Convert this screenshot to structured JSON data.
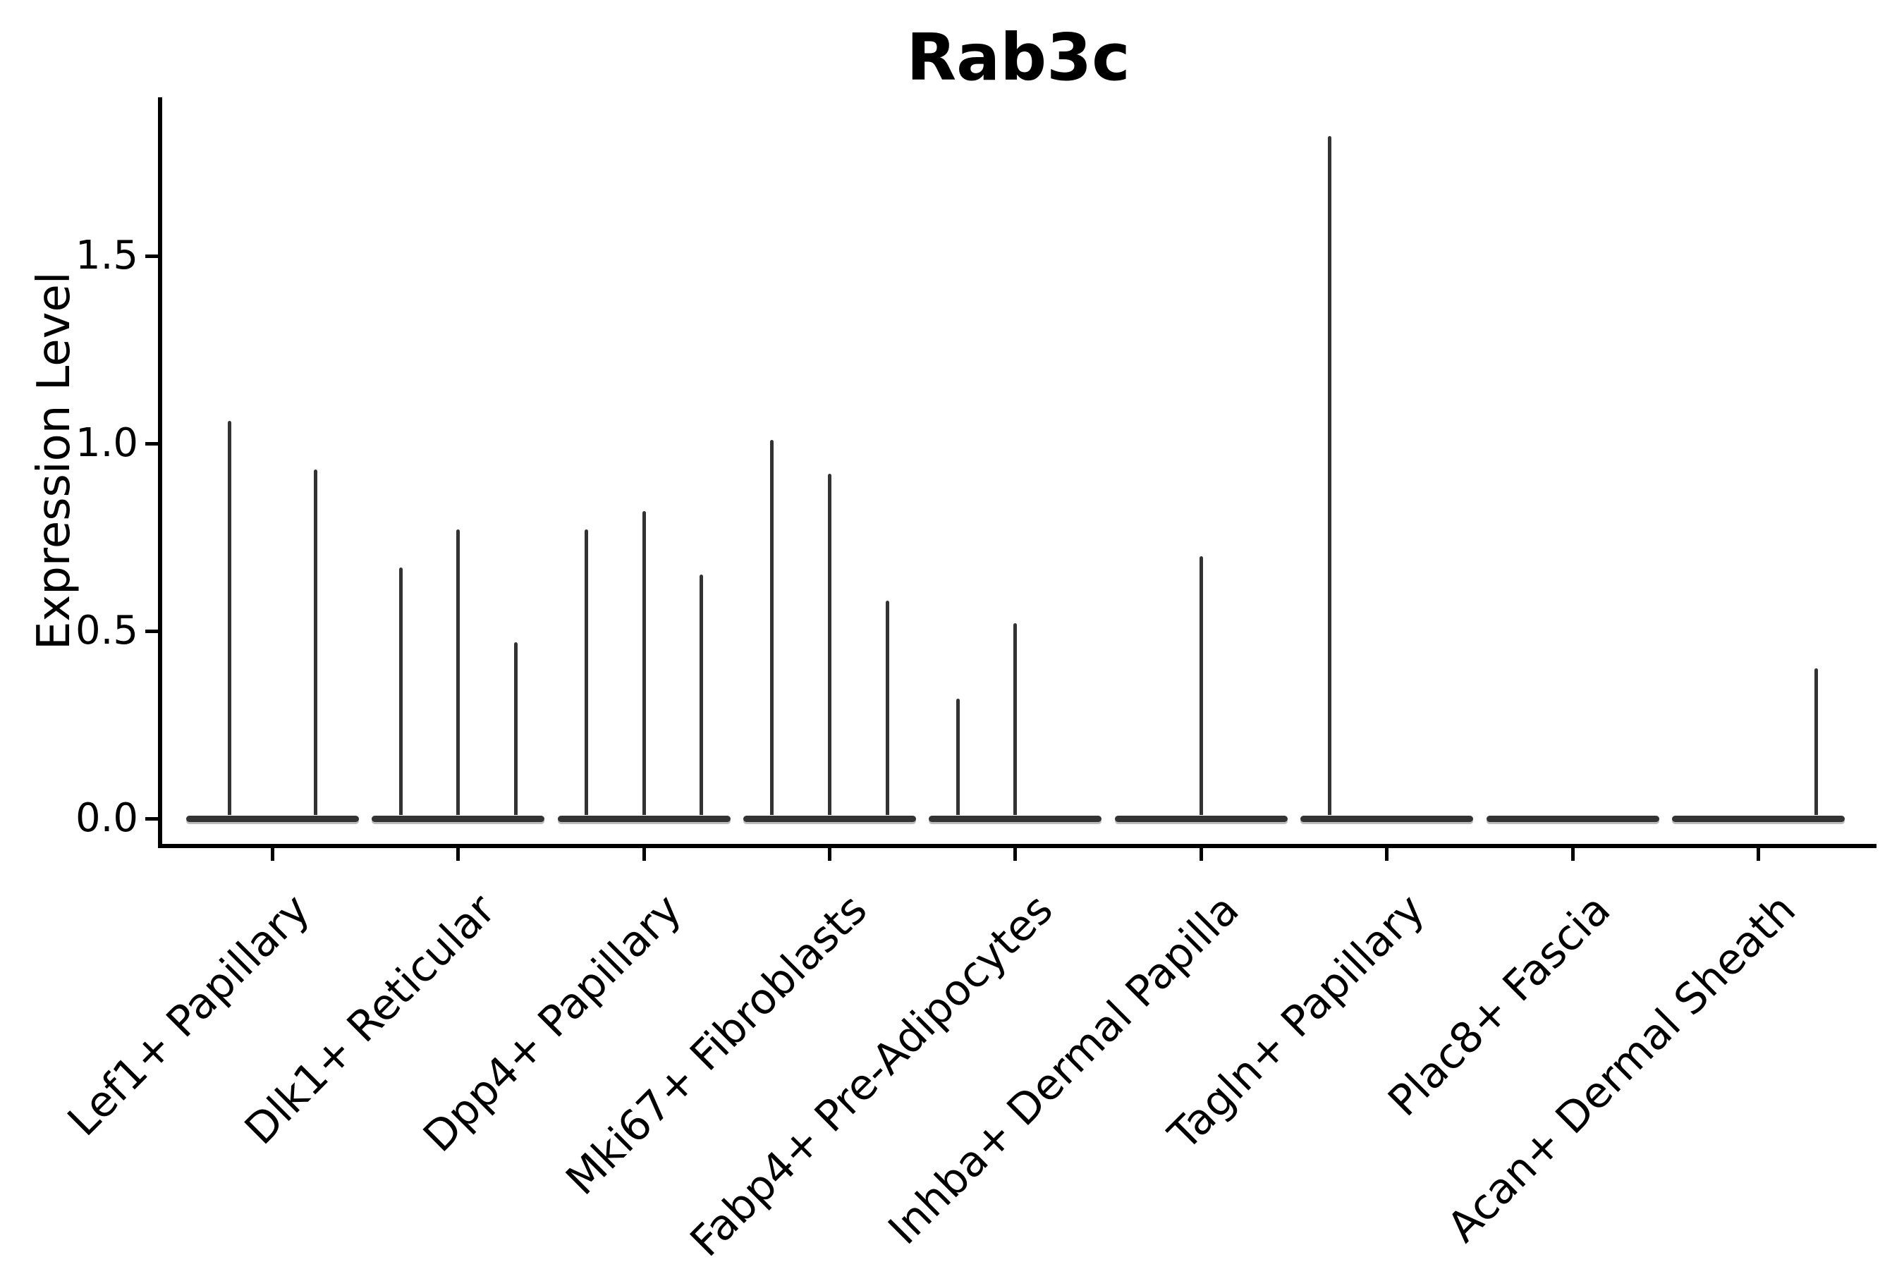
{
  "chart_data": {
    "type": "violin",
    "title": "Rab3c",
    "ylabel": "Expression Level",
    "xlabel": "",
    "yticks_labels": [
      "0.0",
      "0.5",
      "1.0",
      "1.5"
    ],
    "yticks_values": [
      0.0,
      0.5,
      1.0,
      1.5
    ],
    "ylim": [
      -0.07,
      1.92
    ],
    "grid": false,
    "legend": "none",
    "style": "thin spike violins with flat density bar at 0, monochrome",
    "categories": [
      "Lef1+ Papillary",
      "Dlk1+ Reticular",
      "Dpp4+ Papillary",
      "Mki67+ Fibroblasts",
      "Fabp4+ Pre-Adipocytes",
      "Inhba+ Dermal Papilla",
      "Tagln+ Papillary",
      "Plac8+ Fascia",
      "Acan+ Dermal Sheath"
    ],
    "groups": [
      {
        "label": "Lef1+ Papillary",
        "violin_maxima": [
          1.06,
          0.93
        ]
      },
      {
        "label": "Dlk1+ Reticular",
        "violin_maxima": [
          0.67,
          0.77,
          0.47
        ]
      },
      {
        "label": "Dpp4+ Papillary",
        "violin_maxima": [
          0.77,
          0.82,
          0.65
        ]
      },
      {
        "label": "Mki67+ Fibroblasts",
        "violin_maxima": [
          1.01,
          0.92,
          0.58
        ]
      },
      {
        "label": "Fabp4+ Pre-Adipocytes",
        "violin_maxima": [
          0.32,
          0.52,
          0
        ]
      },
      {
        "label": "Inhba+ Dermal Papilla",
        "violin_maxima": [
          0,
          0.7,
          0
        ]
      },
      {
        "label": "Tagln+ Papillary",
        "violin_maxima": [
          1.82,
          0,
          0
        ]
      },
      {
        "label": "Plac8+ Fascia",
        "violin_maxima": [
          0,
          0,
          0
        ]
      },
      {
        "label": "Acan+ Dermal Sheath",
        "violin_maxima": [
          0,
          0,
          0.4
        ]
      }
    ],
    "colors": {
      "violin": "#333333",
      "axis": "#000000",
      "text": "#000000",
      "background": "#ffffff"
    }
  }
}
